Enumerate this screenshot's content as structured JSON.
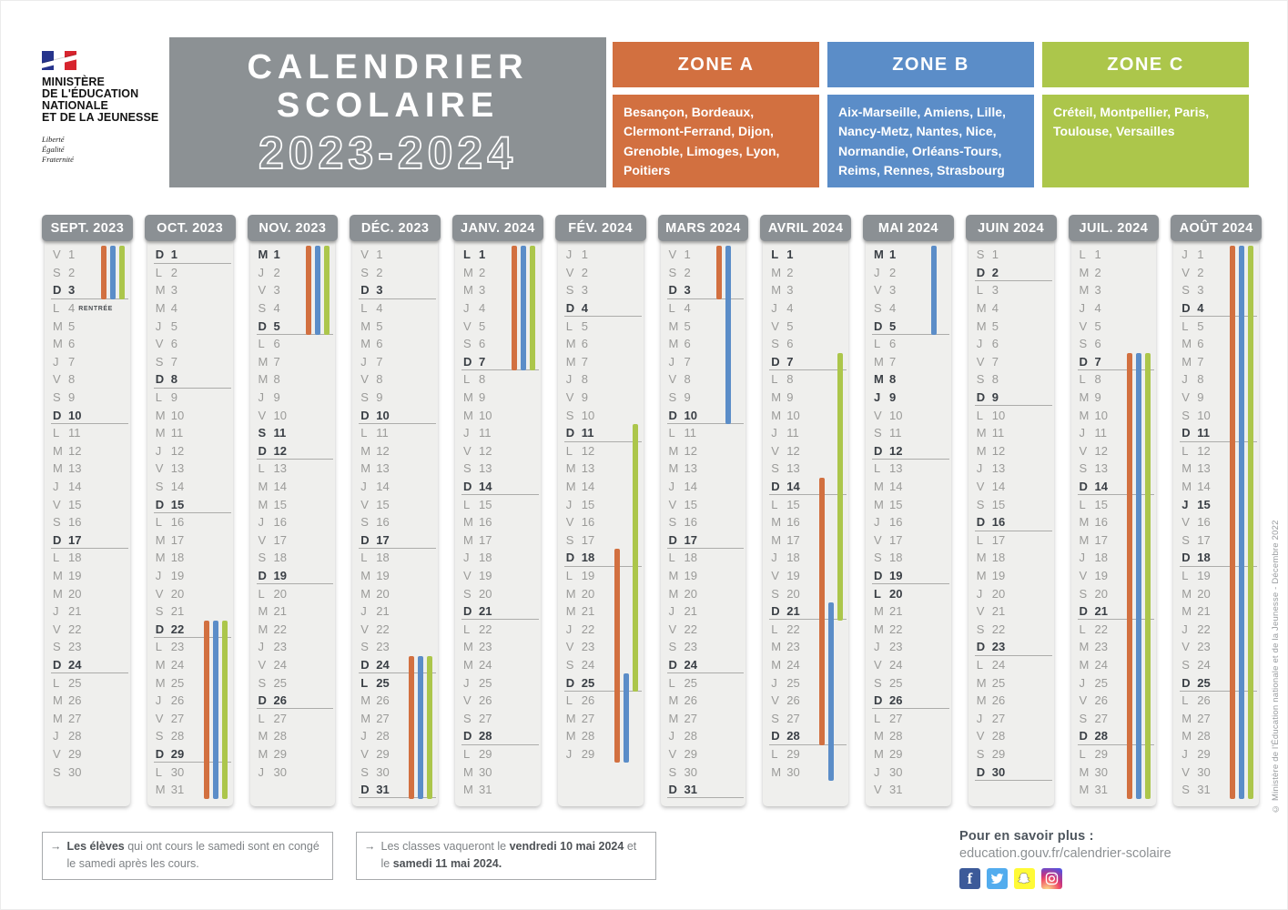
{
  "ministry": {
    "lines": [
      "MINISTÈRE",
      "DE L'ÉDUCATION",
      "NATIONALE",
      "ET DE LA JEUNESSE"
    ],
    "motto": [
      "Liberté",
      "Égalité",
      "Fraternité"
    ]
  },
  "title": {
    "line1": "CALENDRIER",
    "line2": "SCOLAIRE",
    "years": "2023-2024"
  },
  "colors": {
    "grey_header": "#8C9194",
    "month_body": "#EFEFED",
    "day_text": "#9B9B99",
    "day_bold_text": "#3A3F45"
  },
  "zones": [
    {
      "name": "ZONE A",
      "color": "#D27040",
      "cities": "Besançon, Bordeaux, Clermont-Ferrand, Dijon, Grenoble, Limoges, Lyon, Poitiers"
    },
    {
      "name": "ZONE B",
      "color": "#5B8DC8",
      "cities": "Aix-Marseille, Amiens, Lille, Nancy-Metz, Nantes, Nice, Normandie, Orléans-Tours, Reims, Rennes, Strasbourg"
    },
    {
      "name": "ZONE C",
      "color": "#ACC64B",
      "cities": "Créteil, Montpellier, Paris, Toulouse, Versailles"
    }
  ],
  "weekday_cycle": [
    "L",
    "M",
    "M",
    "J",
    "V",
    "S",
    "D"
  ],
  "months": [
    {
      "label": "SEPT. 2023",
      "len": 30,
      "start": 4,
      "notes": {
        "4": "RENTRÉE"
      },
      "bars": [
        {
          "zone": "A",
          "from": 1,
          "to": 3
        },
        {
          "zone": "B",
          "from": 1,
          "to": 3
        },
        {
          "zone": "C",
          "from": 1,
          "to": 3
        }
      ]
    },
    {
      "label": "OCT. 2023",
      "len": 31,
      "start": 6,
      "bars": [
        {
          "zone": "A",
          "from": 22,
          "to": 31
        },
        {
          "zone": "B",
          "from": 22,
          "to": 31
        },
        {
          "zone": "C",
          "from": 22,
          "to": 31
        }
      ]
    },
    {
      "label": "NOV. 2023",
      "len": 30,
      "start": 2,
      "extra_bold": [
        1,
        11
      ],
      "bars": [
        {
          "zone": "A",
          "from": 1,
          "to": 5
        },
        {
          "zone": "B",
          "from": 1,
          "to": 5
        },
        {
          "zone": "C",
          "from": 1,
          "to": 5
        }
      ]
    },
    {
      "label": "DÉC. 2023",
      "len": 31,
      "start": 4,
      "extra_bold": [
        25
      ],
      "bars": [
        {
          "zone": "A",
          "from": 24,
          "to": 31
        },
        {
          "zone": "B",
          "from": 24,
          "to": 31
        },
        {
          "zone": "C",
          "from": 24,
          "to": 31
        }
      ]
    },
    {
      "label": "JANV. 2024",
      "len": 31,
      "start": 0,
      "extra_bold": [
        1
      ],
      "bars": [
        {
          "zone": "A",
          "from": 1,
          "to": 7
        },
        {
          "zone": "B",
          "from": 1,
          "to": 7
        },
        {
          "zone": "C",
          "from": 1,
          "to": 7
        }
      ]
    },
    {
      "label": "FÉV. 2024",
      "len": 29,
      "start": 3,
      "bars": [
        {
          "zone": "C",
          "from": 11,
          "to": 25
        },
        {
          "zone": "A",
          "from": 18,
          "to": 29
        },
        {
          "zone": "B",
          "from": 25,
          "to": 29
        }
      ]
    },
    {
      "label": "MARS 2024",
      "len": 31,
      "start": 4,
      "bars": [
        {
          "zone": "A",
          "from": 1,
          "to": 3
        },
        {
          "zone": "B",
          "from": 1,
          "to": 10
        }
      ]
    },
    {
      "label": "AVRIL 2024",
      "len": 30,
      "start": 0,
      "extra_bold": [
        1
      ],
      "bars": [
        {
          "zone": "C",
          "from": 7,
          "to": 21
        },
        {
          "zone": "A",
          "from": 14,
          "to": 28
        },
        {
          "zone": "B",
          "from": 21,
          "to": 30
        }
      ]
    },
    {
      "label": "MAI 2024",
      "len": 31,
      "start": 2,
      "extra_bold": [
        1,
        8,
        9,
        20
      ],
      "bars": [
        {
          "zone": "B",
          "from": 1,
          "to": 5
        }
      ]
    },
    {
      "label": "JUIN 2024",
      "len": 30,
      "start": 5,
      "bars": []
    },
    {
      "label": "JUIL. 2024",
      "len": 31,
      "start": 0,
      "bars": [
        {
          "zone": "A",
          "from": 7,
          "to": 31
        },
        {
          "zone": "B",
          "from": 7,
          "to": 31
        },
        {
          "zone": "C",
          "from": 7,
          "to": 31
        }
      ]
    },
    {
      "label": "AOÛT 2024",
      "len": 31,
      "start": 3,
      "extra_bold": [
        15
      ],
      "bars": [
        {
          "zone": "A",
          "from": 1,
          "to": 31
        },
        {
          "zone": "B",
          "from": 1,
          "to": 31
        },
        {
          "zone": "C",
          "from": 1,
          "to": 31
        }
      ]
    }
  ],
  "notes": {
    "arrow": "→",
    "note1_bold": "Les élèves",
    "note1_rest": " qui ont cours le samedi sont en congé le samedi après les cours.",
    "note2_pre": "Les classes vaqueront le ",
    "note2_bold1": "vendredi 10 mai 2024",
    "note2_mid": " et le ",
    "note2_bold2": "samedi 11 mai 2024."
  },
  "footer": {
    "label": "Pour en savoir plus :",
    "url": "education.gouv.fr/calendrier-scolaire",
    "social": [
      "facebook-icon",
      "twitter-icon",
      "snapchat-icon",
      "instagram-icon"
    ]
  },
  "copyright": "© Ministère de l'Éducation nationale et de la Jeunesse - Décembre 2022"
}
